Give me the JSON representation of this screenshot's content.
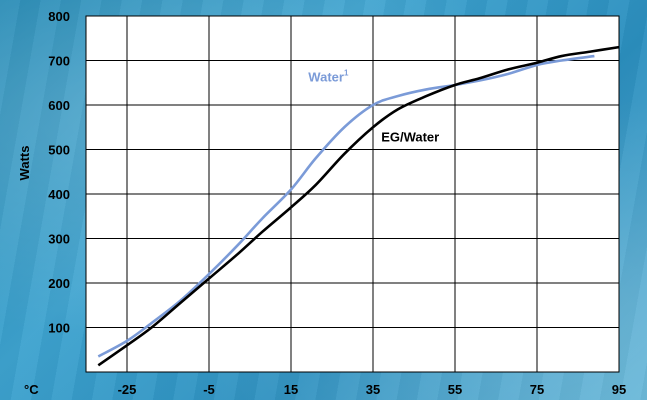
{
  "chart_data": {
    "type": "line",
    "title": "",
    "xlabel": "",
    "ylabel": "Watts",
    "x_unit_label": "°C",
    "xlim": [
      -35,
      95
    ],
    "ylim": [
      0,
      800
    ],
    "x_ticks": [
      -25,
      -5,
      15,
      35,
      55,
      75,
      95
    ],
    "y_ticks": [
      100,
      200,
      300,
      400,
      500,
      600,
      700,
      800
    ],
    "grid": true,
    "series": [
      {
        "name": "Water",
        "label_superscript": "1",
        "color": "#7b9bd8",
        "x": [
          -32,
          -25,
          -19,
          -12,
          -5,
          2,
          8,
          15,
          21,
          28,
          35,
          41,
          48,
          55,
          61,
          68,
          75,
          81,
          89
        ],
        "y": [
          35,
          70,
          110,
          160,
          220,
          285,
          345,
          410,
          480,
          550,
          600,
          620,
          635,
          645,
          655,
          670,
          690,
          700,
          710
        ]
      },
      {
        "name": "EG/Water",
        "color": "#000000",
        "x": [
          -32,
          -25,
          -19,
          -12,
          -5,
          2,
          8,
          15,
          21,
          28,
          35,
          41,
          48,
          55,
          61,
          68,
          75,
          81,
          88,
          95
        ],
        "y": [
          15,
          60,
          100,
          155,
          210,
          265,
          315,
          370,
          420,
          490,
          550,
          590,
          620,
          645,
          660,
          680,
          695,
          710,
          720,
          730
        ]
      }
    ]
  }
}
